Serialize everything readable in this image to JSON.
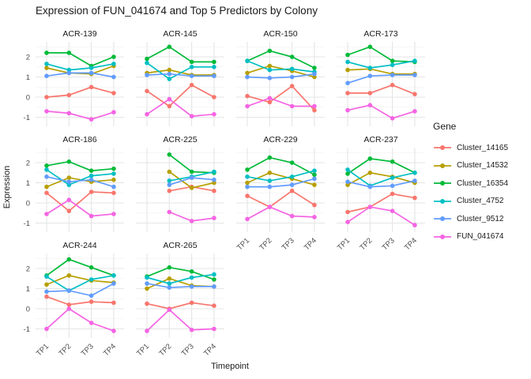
{
  "title": "Expression of FUN_041674 and Top 5 Predictors by Colony",
  "axes": {
    "x_title": "Timepoint",
    "y_title": "Expression",
    "x_tick_labels": [
      "TP1",
      "TP2",
      "TP3",
      "TP4"
    ],
    "y_tick_labels": [
      "2",
      "1",
      "0",
      "-1"
    ]
  },
  "legend": {
    "title": "Gene",
    "position": "right"
  },
  "chart_data": {
    "type": "line",
    "facet_by": "Colony",
    "x": [
      "TP1",
      "TP2",
      "TP3",
      "TP4"
    ],
    "y_ticks": [
      2,
      1,
      0,
      -1
    ],
    "ylim": [
      -1.45,
      2.75
    ],
    "grid": true,
    "genes": [
      {
        "name": "Cluster_14165",
        "color": "#F8766D"
      },
      {
        "name": "Cluster_14532",
        "color": "#B79F00"
      },
      {
        "name": "Cluster_16354",
        "color": "#00BA38"
      },
      {
        "name": "Cluster_4752",
        "color": "#00BFC4"
      },
      {
        "name": "Cluster_9512",
        "color": "#619CFF"
      },
      {
        "name": "FUN_041674",
        "color": "#F564E3"
      }
    ],
    "facets": [
      {
        "name": "ACR-139",
        "values": [
          [
            0.0,
            0.1,
            0.5,
            0.2
          ],
          [
            1.45,
            1.2,
            1.15,
            1.55
          ],
          [
            2.2,
            2.2,
            1.55,
            2.0
          ],
          [
            1.65,
            1.35,
            1.45,
            1.65
          ],
          [
            1.05,
            1.2,
            1.2,
            1.0
          ],
          [
            -0.7,
            -0.8,
            -1.1,
            -0.75
          ]
        ]
      },
      {
        "name": "ACR-145",
        "values": [
          [
            0.3,
            -0.45,
            0.6,
            0.0
          ],
          [
            1.2,
            1.35,
            1.1,
            1.1
          ],
          [
            1.9,
            2.5,
            1.75,
            1.75
          ],
          [
            1.7,
            0.9,
            1.5,
            1.5
          ],
          [
            1.1,
            1.15,
            1.05,
            1.05
          ],
          [
            -0.85,
            -0.1,
            -0.95,
            -0.85
          ]
        ]
      },
      {
        "name": "ACR-150",
        "values": [
          [
            0.05,
            -0.25,
            0.55,
            -0.65
          ],
          [
            1.2,
            1.55,
            1.3,
            1.0
          ],
          [
            1.8,
            2.3,
            2.0,
            1.45
          ],
          [
            1.8,
            1.35,
            1.4,
            1.25
          ],
          [
            1.0,
            0.95,
            1.0,
            1.15
          ],
          [
            -0.45,
            -0.05,
            -0.45,
            -0.45
          ]
        ]
      },
      {
        "name": "ACR-173",
        "values": [
          [
            0.2,
            0.2,
            0.6,
            0.15
          ],
          [
            1.35,
            1.4,
            1.15,
            1.15
          ],
          [
            2.1,
            2.5,
            1.8,
            1.75
          ],
          [
            1.75,
            1.45,
            1.6,
            1.8
          ],
          [
            0.7,
            1.05,
            1.1,
            1.1
          ],
          [
            -0.65,
            -0.4,
            -1.05,
            -0.7
          ]
        ]
      },
      {
        "name": "ACR-186",
        "values": [
          [
            0.5,
            -0.4,
            0.55,
            0.5
          ],
          [
            0.8,
            1.25,
            1.05,
            1.15
          ],
          [
            1.85,
            2.05,
            1.6,
            1.7
          ],
          [
            1.65,
            0.9,
            1.35,
            1.45
          ],
          [
            1.3,
            1.05,
            1.15,
            0.8
          ],
          [
            -0.55,
            0.15,
            -0.65,
            -0.55
          ]
        ]
      },
      {
        "name": "ACR-225",
        "values": [
          [
            null,
            0.6,
            0.8,
            0.6
          ],
          [
            null,
            1.55,
            0.75,
            1.0
          ],
          [
            null,
            2.4,
            1.55,
            1.5
          ],
          [
            null,
            1.1,
            1.3,
            1.55
          ],
          [
            null,
            0.9,
            1.25,
            1.15
          ],
          [
            null,
            -0.45,
            -0.9,
            -0.75
          ]
        ]
      },
      {
        "name": "ACR-229",
        "values": [
          [
            0.35,
            -0.2,
            0.6,
            -0.1
          ],
          [
            1.0,
            1.5,
            1.2,
            0.9
          ],
          [
            1.65,
            2.25,
            2.0,
            1.4
          ],
          [
            1.3,
            1.1,
            1.3,
            1.6
          ],
          [
            0.8,
            0.8,
            0.9,
            1.2
          ],
          [
            -0.8,
            -0.2,
            -0.65,
            -0.7
          ]
        ]
      },
      {
        "name": "ACR-237",
        "values": [
          [
            -0.45,
            -0.2,
            0.45,
            0.25
          ],
          [
            0.9,
            1.5,
            1.3,
            1.0
          ],
          [
            1.45,
            2.2,
            2.05,
            1.5
          ],
          [
            1.65,
            0.85,
            1.25,
            1.5
          ],
          [
            1.05,
            0.8,
            0.85,
            1.1
          ],
          [
            -0.95,
            -0.2,
            -0.4,
            -1.1
          ]
        ]
      },
      {
        "name": "ACR-244",
        "values": [
          [
            0.6,
            0.2,
            0.35,
            0.3
          ],
          [
            1.2,
            1.65,
            1.4,
            1.3
          ],
          [
            1.65,
            2.45,
            2.05,
            1.65
          ],
          [
            1.6,
            0.9,
            1.45,
            1.65
          ],
          [
            0.85,
            0.9,
            0.65,
            1.25
          ],
          [
            -1.0,
            0.0,
            -0.7,
            -1.1
          ]
        ]
      },
      {
        "name": "ACR-265",
        "values": [
          [
            0.25,
            0.0,
            0.3,
            0.15
          ],
          [
            1.0,
            1.5,
            1.15,
            1.1
          ],
          [
            1.6,
            2.05,
            1.85,
            1.45
          ],
          [
            1.55,
            1.25,
            1.55,
            1.7
          ],
          [
            1.25,
            1.05,
            1.1,
            1.1
          ],
          [
            -1.1,
            -0.05,
            -1.05,
            -1.0
          ]
        ]
      }
    ]
  }
}
